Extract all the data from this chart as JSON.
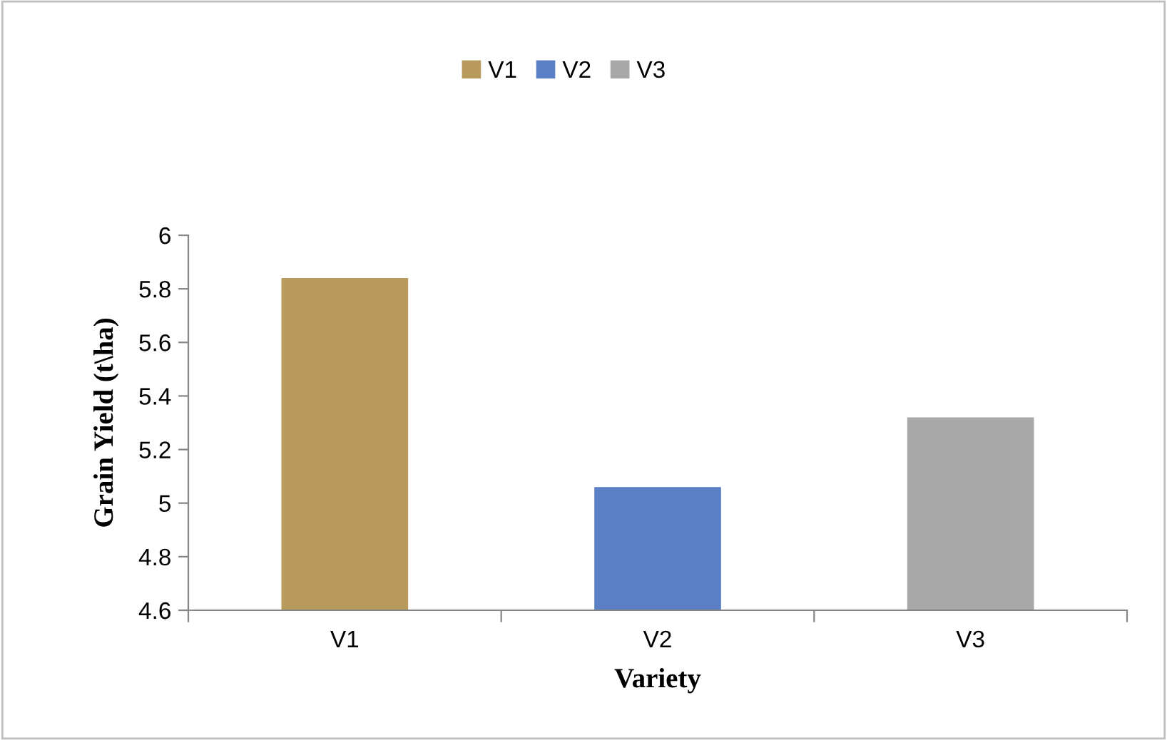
{
  "chart_data": {
    "type": "bar",
    "xlabel": "Variety",
    "ylabel": "Grain Yield (t\\ha)",
    "categories": [
      "V1",
      "V2",
      "V3"
    ],
    "series": [
      {
        "name": "V1",
        "color": "#b89a5c",
        "values": [
          5.84,
          null,
          null
        ]
      },
      {
        "name": "V2",
        "color": "#5b7fc4",
        "values": [
          null,
          5.06,
          null
        ]
      },
      {
        "name": "V3",
        "color": "#a8a8a8",
        "values": [
          null,
          null,
          5.32
        ]
      }
    ],
    "ylim": [
      4.6,
      6
    ],
    "yticks": [
      4.6,
      4.8,
      5,
      5.2,
      5.4,
      5.6,
      5.8,
      6
    ],
    "grid": false,
    "legend": "top"
  }
}
